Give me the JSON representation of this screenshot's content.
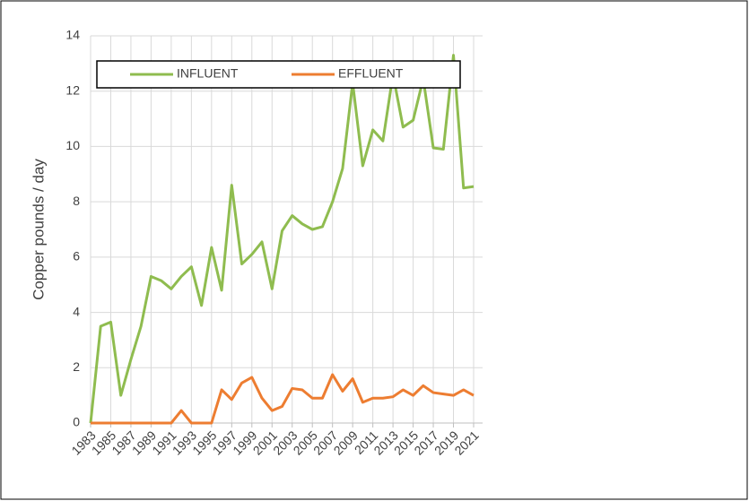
{
  "chart_data": {
    "type": "line",
    "y_label": "Copper pounds / day",
    "x": [
      1983,
      1984,
      1985,
      1986,
      1987,
      1988,
      1989,
      1990,
      1991,
      1992,
      1993,
      1994,
      1995,
      1996,
      1997,
      1998,
      1999,
      2000,
      2001,
      2002,
      2003,
      2004,
      2005,
      2006,
      2007,
      2008,
      2009,
      2010,
      2011,
      2012,
      2013,
      2014,
      2015,
      2016,
      2017,
      2018,
      2019,
      2020,
      2021
    ],
    "xlim": [
      1983,
      2021
    ],
    "xticks": [
      1983,
      1985,
      1987,
      1989,
      1991,
      1993,
      1995,
      1997,
      1999,
      2001,
      2003,
      2005,
      2007,
      2009,
      2011,
      2013,
      2015,
      2017,
      2019,
      2021
    ],
    "ylim": [
      0,
      14
    ],
    "yticks": [
      0,
      2,
      4,
      6,
      8,
      10,
      12,
      14
    ],
    "grid": true,
    "legend": "top",
    "series": [
      {
        "name": "INFLUENT",
        "color": "#8fbc4f",
        "values": [
          0,
          3.5,
          3.65,
          1.0,
          2.3,
          3.5,
          5.3,
          5.15,
          4.85,
          5.3,
          5.65,
          4.25,
          6.35,
          4.8,
          8.6,
          5.75,
          6.1,
          6.55,
          4.85,
          6.95,
          7.5,
          7.2,
          7.0,
          7.1,
          8.0,
          9.2,
          12.3,
          9.3,
          10.6,
          10.2,
          12.6,
          10.7,
          10.95,
          12.45,
          9.95,
          9.9,
          13.3,
          8.5,
          8.55
        ]
      },
      {
        "name": "EFFLUENT",
        "color": "#ed7d31",
        "values": [
          0,
          0,
          0,
          0,
          0,
          0,
          0,
          0,
          0,
          0.45,
          0,
          0,
          0,
          1.2,
          0.85,
          1.45,
          1.65,
          0.9,
          0.45,
          0.6,
          1.25,
          1.2,
          0.9,
          0.9,
          1.75,
          1.15,
          1.6,
          0.75,
          0.9,
          0.9,
          0.95,
          1.2,
          1.0,
          1.35,
          1.1,
          1.05,
          1.0,
          1.2,
          1.0
        ]
      }
    ]
  }
}
